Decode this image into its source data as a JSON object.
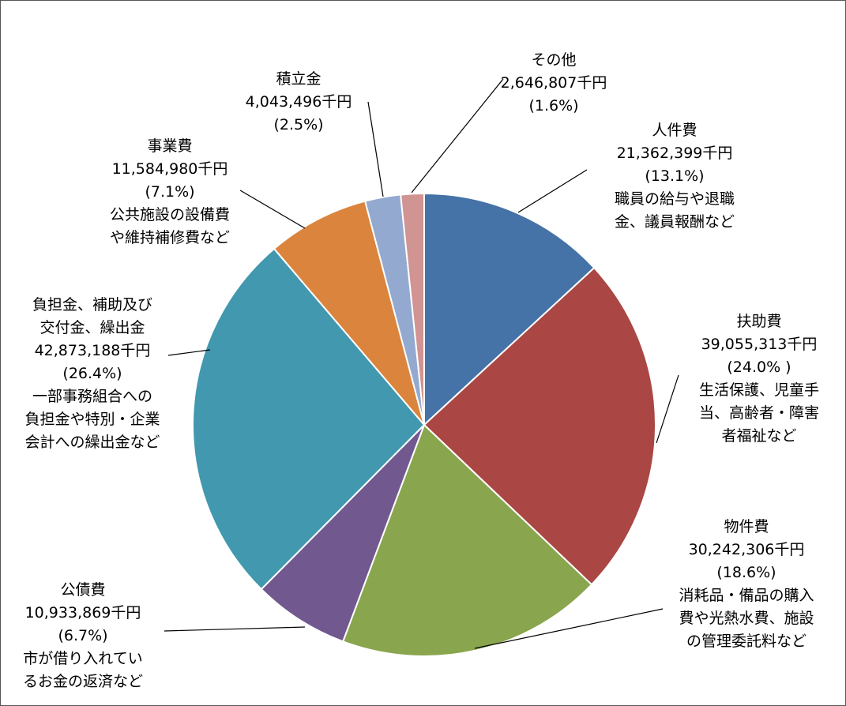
{
  "chart_data": {
    "type": "pie",
    "title": "",
    "start": "top",
    "direction": "clockwise",
    "slices": [
      {
        "name": "人件費",
        "value": 21362399,
        "amount": "21,362,399千円",
        "percent": "(13.1%)",
        "note": [
          "職員の給与や退職",
          "金、議員報酬など"
        ],
        "color": "#4572A7"
      },
      {
        "name": "扶助費",
        "value": 39055313,
        "amount": "39,055,313千円",
        "percent": "(24.0% )",
        "note": [
          "生活保護、児童手",
          "当、高齢者・障害",
          "者福祉など"
        ],
        "color": "#AA4643"
      },
      {
        "name": "物件費",
        "value": 30242306,
        "amount": "30,242,306千円",
        "percent": "(18.6%)",
        "note": [
          "消耗品・備品の購入",
          "費や光熱水費、施設",
          "の管理委託料など"
        ],
        "color": "#89A54E"
      },
      {
        "name": "公債費",
        "value": 10933869,
        "amount": "10,933,869千円",
        "percent": "(6.7%)",
        "note": [
          "市が借り入れてい",
          "るお金の返済など"
        ],
        "color": "#71588F"
      },
      {
        "name": "負担金、補助及び交付金、繰出金",
        "name_lines": [
          "負担金、補助及び",
          "交付金、繰出金"
        ],
        "value": 42873188,
        "amount": "42,873,188千円",
        "percent": "(26.4%)",
        "note": [
          "一部事務組合への",
          "負担金や特別・企業",
          "会計への繰出金など"
        ],
        "color": "#4198AF"
      },
      {
        "name": "事業費",
        "value": 11584980,
        "amount": "11,584,980千円",
        "percent": "(7.1%)",
        "note": [
          "公共施設の設備費",
          "や維持補修費など"
        ],
        "color": "#DB843D"
      },
      {
        "name": "積立金",
        "value": 4043496,
        "amount": "4,043,496千円",
        "percent": "(2.5%)",
        "note": [],
        "color": "#93A9CF"
      },
      {
        "name": "その他",
        "value": 2646807,
        "amount": "2,646,807千円",
        "percent": "(1.6%)",
        "note": [],
        "color": "#D09493"
      }
    ]
  }
}
